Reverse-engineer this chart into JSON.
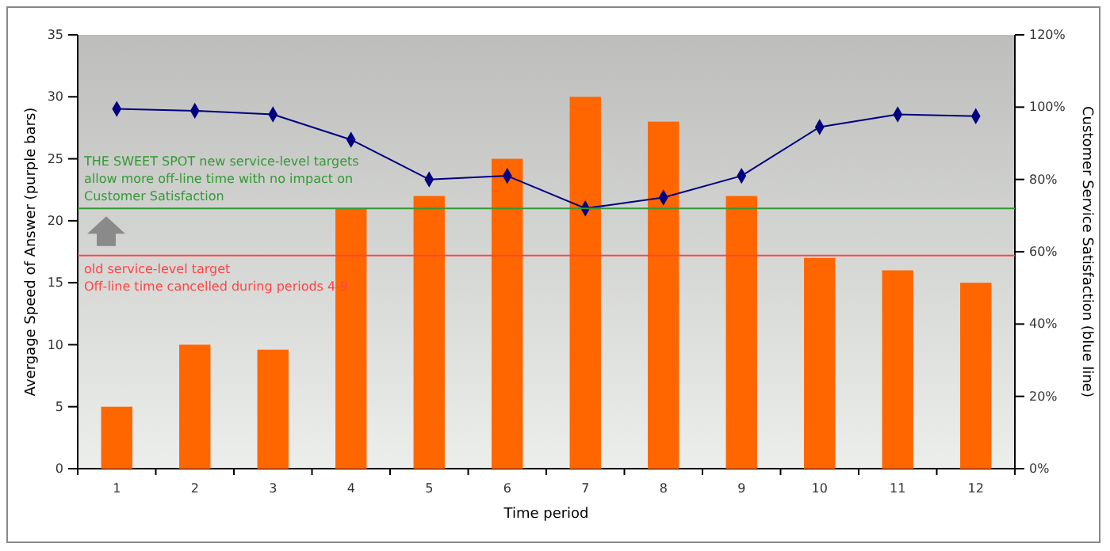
{
  "chart_data": {
    "type": "bar",
    "xlabel": "Time period",
    "ylabel": "Avergage Speed of Answer (purple bars)",
    "y2label": "Customer Service Satisfaction (blue line)",
    "categories": [
      "1",
      "2",
      "3",
      "4",
      "5",
      "6",
      "7",
      "8",
      "9",
      "10",
      "11",
      "12"
    ],
    "series": [
      {
        "color": "#ff6600",
        "values": [
          5,
          10,
          9.6,
          21,
          22,
          25,
          30,
          28,
          22,
          17,
          16,
          15
        ]
      },
      {
        "type": "line",
        "axis": "y2",
        "color": "#000080",
        "marker": "diamond",
        "values": [
          99.5,
          99,
          98,
          91,
          80,
          81,
          72,
          75,
          81,
          94.5,
          98,
          97.5
        ]
      }
    ],
    "ylim": [
      0,
      35
    ],
    "yticks": [
      0,
      5,
      10,
      15,
      20,
      25,
      30,
      35
    ],
    "y2lim": [
      0,
      120
    ],
    "y2ticks": [
      {
        "value": 0,
        "label": "0%"
      },
      {
        "value": 20,
        "label": "20%"
      },
      {
        "value": 40,
        "label": "40%"
      },
      {
        "value": 60,
        "label": "60%"
      },
      {
        "value": 80,
        "label": "80%"
      },
      {
        "value": 100,
        "label": "100%"
      },
      {
        "value": 120,
        "label": "120%"
      }
    ],
    "ref_lines": [
      {
        "axis": "y",
        "value": 21,
        "color": "#339933",
        "label": "THE SWEET SPOT new service-level targets allow more off-line time with no impact on Customer Satisfaction"
      },
      {
        "axis": "y",
        "value": 17.2,
        "color": "#ff4444",
        "label": "old service-level target"
      }
    ],
    "annotations": [
      {
        "text": "Off-line time cancelled during periods 4-9",
        "y": 17.2
      }
    ],
    "grid": false
  }
}
